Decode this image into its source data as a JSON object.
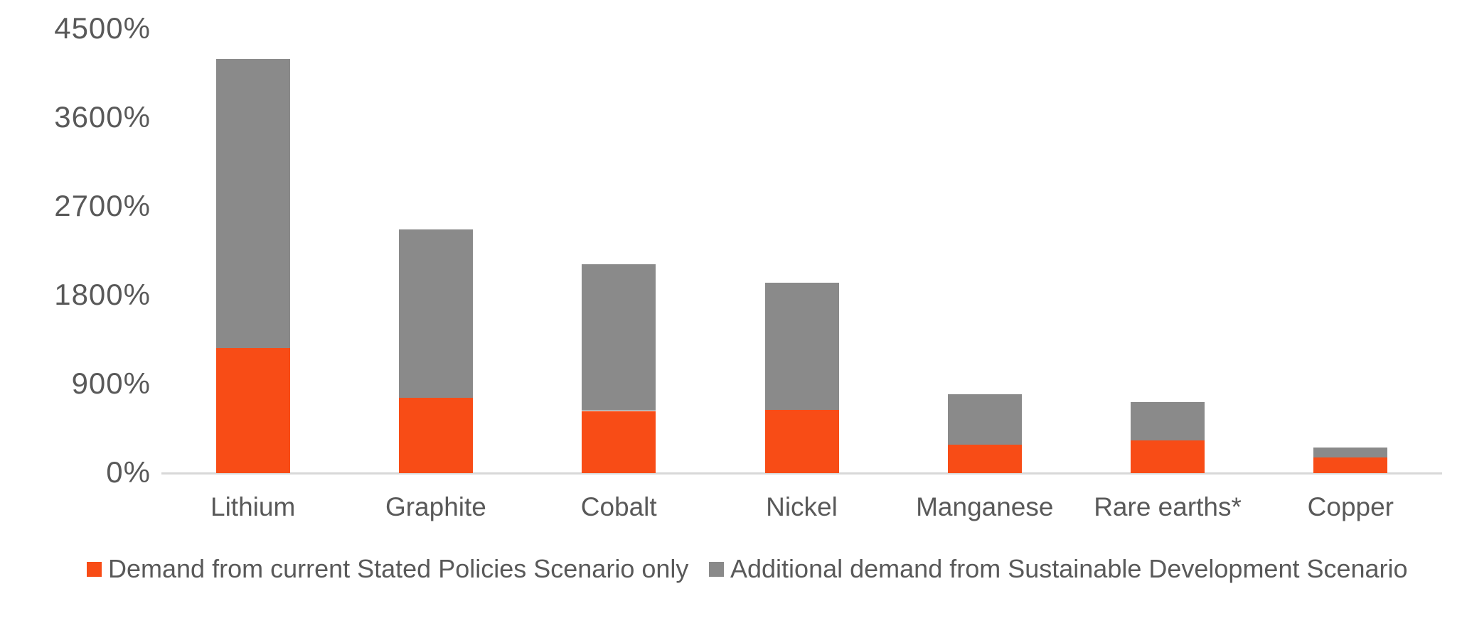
{
  "chart_data": {
    "type": "bar",
    "stacked": true,
    "title": "",
    "xlabel": "",
    "ylabel": "",
    "ylabel_format": "percent",
    "ylim": [
      0,
      4500
    ],
    "grid": false,
    "legend_position": "bottom",
    "yticks": [
      0,
      900,
      1800,
      2700,
      3600,
      4500
    ],
    "ytick_labels": [
      "0%",
      "900%",
      "1800%",
      "2700%",
      "3600%",
      "4500%"
    ],
    "categories": [
      "Lithium",
      "Graphite",
      "Cobalt",
      "Nickel",
      "Manganese",
      "Rare earths*",
      "Copper"
    ],
    "series": [
      {
        "name": "Demand from current Stated Policies Scenario only",
        "color": "#f84c16",
        "values": [
          1270,
          760,
          630,
          640,
          290,
          330,
          160
        ]
      },
      {
        "name": "Additional demand from Sustainable Development Scenario",
        "color": "#8a8a8a",
        "values": [
          2930,
          1710,
          1490,
          1290,
          510,
          390,
          100
        ]
      }
    ],
    "stack_totals": [
      4200,
      2470,
      2120,
      1930,
      800,
      720,
      260
    ]
  },
  "colors": {
    "background": "#ffffff",
    "axis_line": "#d8d8d8",
    "text": "#595959",
    "series_steps": "#f84c16",
    "series_sds": "#8a8a8a"
  }
}
